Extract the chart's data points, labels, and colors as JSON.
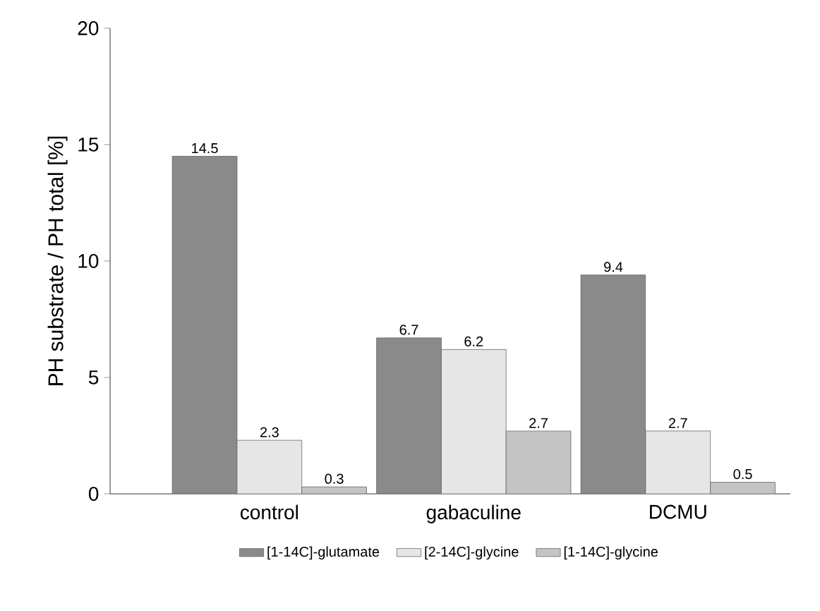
{
  "chart_data": {
    "type": "bar",
    "ylabel": "PH substrate / PH total [%]",
    "categories": [
      "control",
      "gabaculine",
      "DCMU"
    ],
    "series": [
      {
        "name": "[1-14C]-glutamate",
        "color": "#8a8a8a",
        "values": [
          14.5,
          6.7,
          9.4
        ]
      },
      {
        "name": "[2-14C]-glycine",
        "color": "#e6e6e6",
        "values": [
          2.3,
          6.2,
          2.7
        ]
      },
      {
        "name": "[1-14C]-glycine",
        "color": "#c4c4c4",
        "values": [
          0.3,
          2.7,
          0.5
        ]
      }
    ],
    "ylim": [
      0,
      20
    ],
    "yticks": [
      0,
      5,
      10,
      15,
      20
    ],
    "data_labels": true,
    "legend": "bottom",
    "grid": false
  }
}
